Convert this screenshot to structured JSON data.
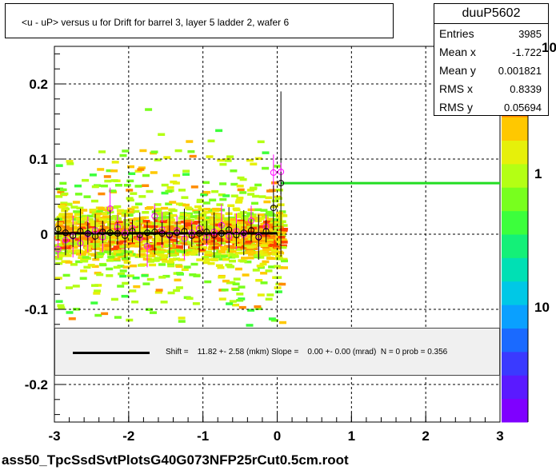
{
  "title": "<u - uP>       versus   u for Drift for barrel 3, layer 5 ladder 2, wafer 6",
  "stats": {
    "name": "duuP5602",
    "rows": [
      {
        "key": "Entries",
        "value": "3985"
      },
      {
        "key": "Mean x",
        "value": "-1.722"
      },
      {
        "key": "Mean y",
        "value": "0.001821"
      },
      {
        "key": "RMS x",
        "value": "0.8339"
      },
      {
        "key": "RMS y",
        "value": "0.05694"
      }
    ]
  },
  "fit": {
    "text": "Shift =    11.82 +- 2.58 (mkm) Slope =    0.00 +- 0.00 (mrad)  N = 0 prob = 0.356"
  },
  "footer": "ass50_TpcSsdSvtPlotsG40G073NFP25rCut0.5cm.root",
  "palette": {
    "labels": [
      "10",
      "1",
      "10"
    ],
    "colors": [
      "#7f00ff",
      "#5a1aff",
      "#3a3aff",
      "#1a6aff",
      "#0aa0ff",
      "#00c8e6",
      "#00e0b4",
      "#14f078",
      "#3cff3c",
      "#78ff1e",
      "#b4ff14",
      "#e6f00a",
      "#ffc800",
      "#ff8c00",
      "#ff4000",
      "#ff0000"
    ]
  },
  "chart_data": {
    "type": "heatmap",
    "title": "<u - uP>       versus   u for Drift for barrel 3, layer 5 ladder 2, wafer 6",
    "xlim": [
      -3,
      3
    ],
    "ylim": [
      -0.25,
      0.25
    ],
    "x_ticks": [
      "-3",
      "-2",
      "-1",
      "0",
      "1",
      "2",
      "3"
    ],
    "y_ticks": [
      "-0.2",
      "-0.1",
      "0",
      "0.1",
      "0.2"
    ],
    "grid": true,
    "profile_black": [
      {
        "x": -2.95,
        "y": 0.007
      },
      {
        "x": -2.85,
        "y": 0.002
      },
      {
        "x": -2.75,
        "y": -0.002
      },
      {
        "x": -2.65,
        "y": 0.004
      },
      {
        "x": -2.55,
        "y": 0.001
      },
      {
        "x": -2.45,
        "y": -0.003
      },
      {
        "x": -2.35,
        "y": 0.003
      },
      {
        "x": -2.25,
        "y": 0.002
      },
      {
        "x": -2.15,
        "y": 0.001
      },
      {
        "x": -2.05,
        "y": -0.002
      },
      {
        "x": -1.95,
        "y": 0.004
      },
      {
        "x": -1.85,
        "y": -0.001
      },
      {
        "x": -1.75,
        "y": 0.002
      },
      {
        "x": -1.65,
        "y": 0.003
      },
      {
        "x": -1.55,
        "y": 0.001
      },
      {
        "x": -1.45,
        "y": -0.001
      },
      {
        "x": -1.35,
        "y": 0.002
      },
      {
        "x": -1.25,
        "y": 0.004
      },
      {
        "x": -1.15,
        "y": -0.002
      },
      {
        "x": -1.05,
        "y": 0.001
      },
      {
        "x": -0.95,
        "y": 0.003
      },
      {
        "x": -0.85,
        "y": -0.001
      },
      {
        "x": -0.75,
        "y": 0.001
      },
      {
        "x": -0.65,
        "y": 0.006
      },
      {
        "x": -0.55,
        "y": -0.001
      },
      {
        "x": -0.45,
        "y": 0.002
      },
      {
        "x": -0.35,
        "y": 0.005
      },
      {
        "x": -0.25,
        "y": -0.004
      },
      {
        "x": -0.15,
        "y": 0.004
      },
      {
        "x": -0.05,
        "y": 0.035
      },
      {
        "x": 0.05,
        "y": 0.068
      }
    ],
    "profile_magenta": [
      {
        "x": -2.95,
        "y": -0.02
      },
      {
        "x": -2.85,
        "y": -0.008
      },
      {
        "x": -2.75,
        "y": -0.003
      },
      {
        "x": -2.65,
        "y": -0.012
      },
      {
        "x": -2.55,
        "y": 0.0
      },
      {
        "x": -2.45,
        "y": 0.005
      },
      {
        "x": -2.35,
        "y": -0.004
      },
      {
        "x": -2.25,
        "y": 0.034
      },
      {
        "x": -2.15,
        "y": 0.01
      },
      {
        "x": -2.05,
        "y": 0.002
      },
      {
        "x": -1.95,
        "y": 0.008
      },
      {
        "x": -1.85,
        "y": -0.005
      },
      {
        "x": -1.75,
        "y": -0.016
      },
      {
        "x": -1.65,
        "y": 0.024
      },
      {
        "x": -1.55,
        "y": 0.006
      },
      {
        "x": -1.45,
        "y": -0.002
      },
      {
        "x": -1.35,
        "y": 0.005
      },
      {
        "x": -1.25,
        "y": -0.006
      },
      {
        "x": -1.15,
        "y": 0.002
      },
      {
        "x": -1.05,
        "y": 0.008
      },
      {
        "x": -0.95,
        "y": -0.004
      },
      {
        "x": -0.85,
        "y": 0.003
      },
      {
        "x": -0.75,
        "y": 0.012
      },
      {
        "x": -0.65,
        "y": -0.003
      },
      {
        "x": -0.55,
        "y": 0.004
      },
      {
        "x": -0.45,
        "y": 0.0
      },
      {
        "x": -0.35,
        "y": 0.018
      },
      {
        "x": -0.25,
        "y": -0.003
      },
      {
        "x": -0.15,
        "y": 0.01
      },
      {
        "x": -0.05,
        "y": 0.082
      },
      {
        "x": 0.05,
        "y": 0.083
      }
    ],
    "fit_line_black": {
      "x": [
        -3,
        0
      ],
      "y": [
        0.0012,
        0.0012
      ]
    },
    "fit_line_green": {
      "x": [
        0.05,
        3
      ],
      "y": [
        0.068,
        0.068
      ]
    }
  }
}
